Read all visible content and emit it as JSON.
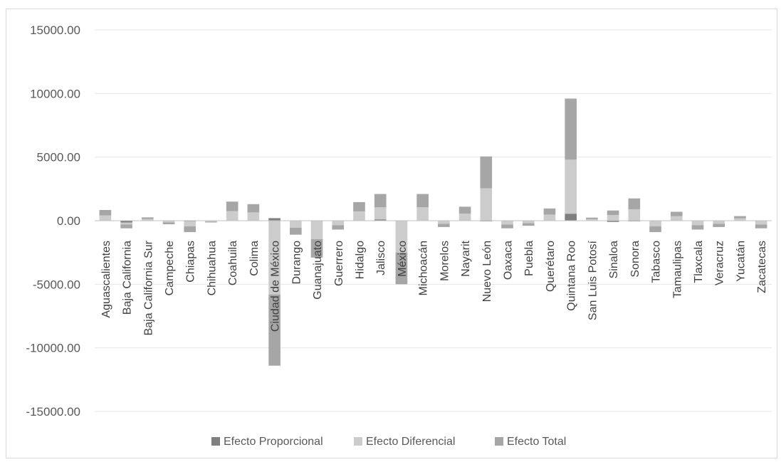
{
  "chart_data": {
    "type": "bar",
    "stacked": true,
    "title": "",
    "xlabel": "",
    "ylabel": "",
    "ylim": [
      -15000,
      15000
    ],
    "yticks": [
      15000,
      10000,
      5000,
      0,
      -5000,
      -10000,
      -15000
    ],
    "ytick_labels": [
      "15000.00",
      "10000.00",
      "5000.00",
      "0.00",
      "-5000.00",
      "-10000.00",
      "-15000.00"
    ],
    "grid": "horizontal",
    "legend_position": "bottom",
    "categories": [
      "Aguascalientes",
      "Baja California",
      "Baja California Sur",
      "Campeche",
      "Chiapas",
      "Chihuahua",
      "Coahuila",
      "Colima",
      "Ciudad de México",
      "Durango",
      "Guanajuato",
      "Guerrero",
      "Hidalgo",
      "Jalisco",
      "México",
      "Michoacán",
      "Morelos",
      "Nayarit",
      "Nuevo León",
      "Oaxaca",
      "Puebla",
      "Querétaro",
      "Quintana Roo",
      "San Luis Potosí",
      "Sinaloa",
      "Sonora",
      "Tabasco",
      "Tamaulipas",
      "Tlaxcala",
      "Veracruz",
      "Yucatán",
      "Zacatecas"
    ],
    "series": [
      {
        "name": "Efecto Proporcional",
        "color": "#7f7f7f",
        "values": [
          0,
          -150,
          0,
          0,
          -50,
          0,
          0,
          0,
          200,
          0,
          0,
          0,
          0,
          100,
          0,
          0,
          0,
          0,
          -50,
          0,
          0,
          0,
          550,
          0,
          -100,
          -50,
          0,
          0,
          0,
          0,
          0,
          0
        ]
      },
      {
        "name": "Efecto Diferencial",
        "color": "#cccccc",
        "values": [
          420,
          -150,
          130,
          -140,
          -400,
          -70,
          750,
          650,
          -5800,
          -550,
          -1450,
          -350,
          730,
          950,
          -2500,
          1050,
          -250,
          550,
          2550,
          -300,
          -200,
          480,
          4250,
          120,
          450,
          900,
          -450,
          350,
          -350,
          -250,
          180,
          -300
        ]
      },
      {
        "name": "Efecto Total",
        "color": "#a6a6a6",
        "values": [
          420,
          -300,
          130,
          -140,
          -450,
          -70,
          750,
          650,
          -5600,
          -550,
          -1450,
          -350,
          730,
          1050,
          -2500,
          1050,
          -250,
          550,
          2500,
          -300,
          -200,
          480,
          4800,
          120,
          350,
          850,
          -450,
          350,
          -350,
          -250,
          180,
          -300
        ]
      }
    ]
  }
}
